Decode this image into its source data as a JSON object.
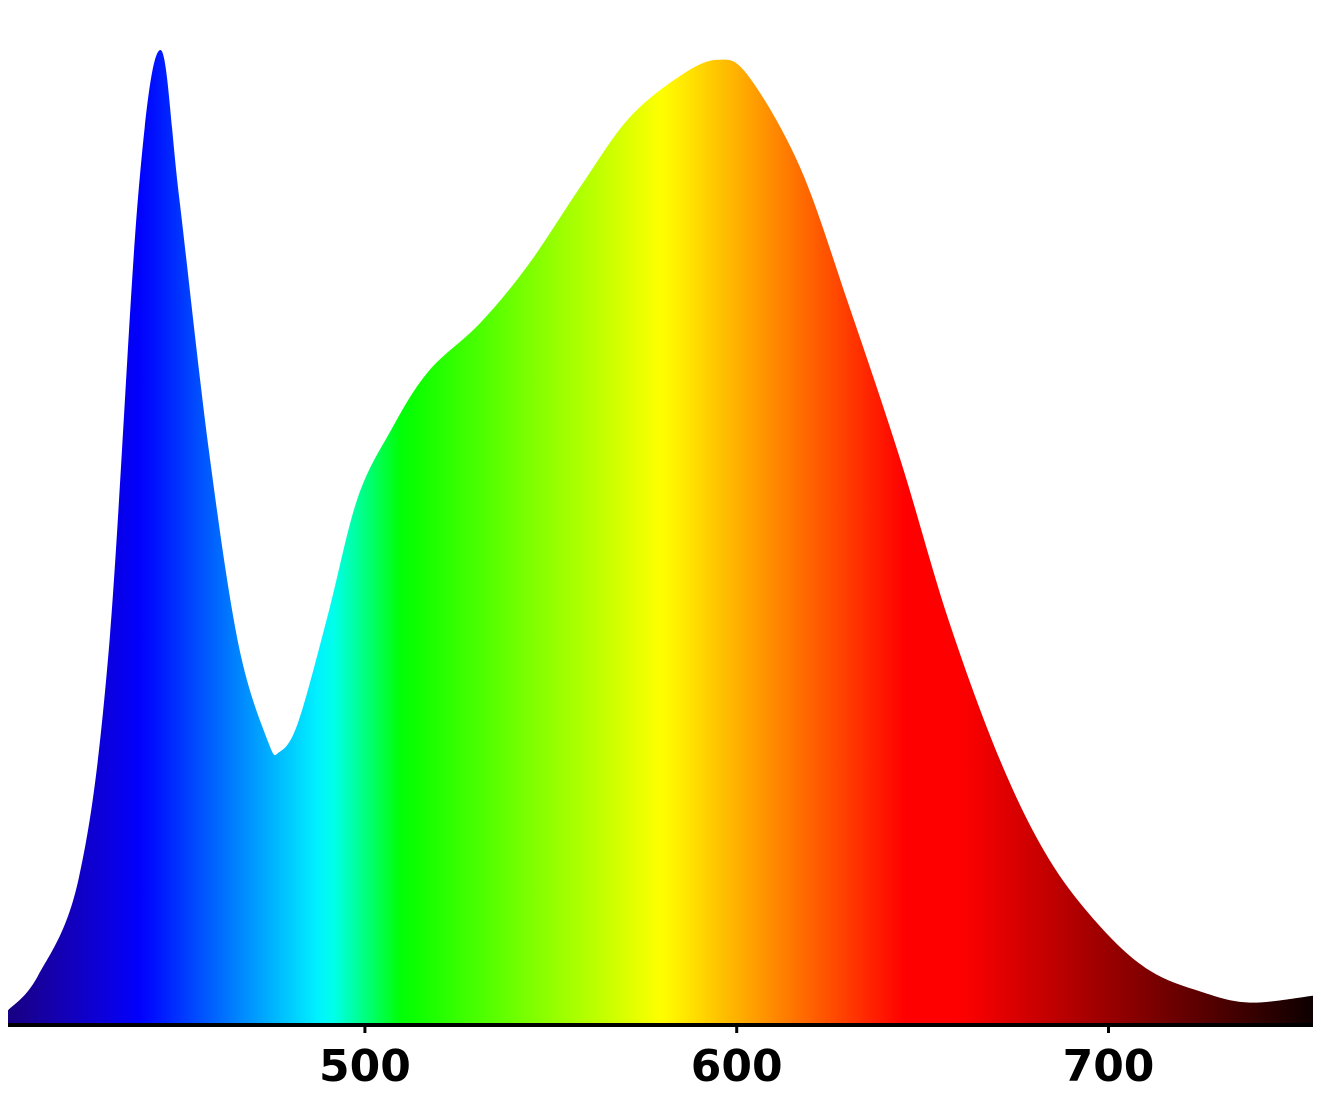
{
  "chart_data": {
    "type": "area",
    "x": [
      404,
      412,
      423,
      431,
      439,
      445,
      450,
      458,
      466,
      474,
      477,
      482,
      490,
      498,
      507,
      517,
      531,
      544,
      558,
      571,
      585,
      595,
      603,
      617,
      630,
      644,
      657,
      671,
      684,
      698,
      711,
      725,
      738,
      755
    ],
    "values": [
      1.5,
      5,
      15,
      38,
      85,
      100,
      85,
      59,
      39,
      29,
      28,
      31,
      42,
      54,
      61,
      67,
      72,
      78,
      86,
      93,
      97.4,
      99,
      97.4,
      88,
      74,
      58,
      41.5,
      27,
      17,
      10,
      5.6,
      3.4,
      2.3,
      3
    ],
    "xlim": [
      404,
      755
    ],
    "ylim": [
      0,
      100
    ],
    "xticks": [
      500,
      600,
      700
    ]
  }
}
